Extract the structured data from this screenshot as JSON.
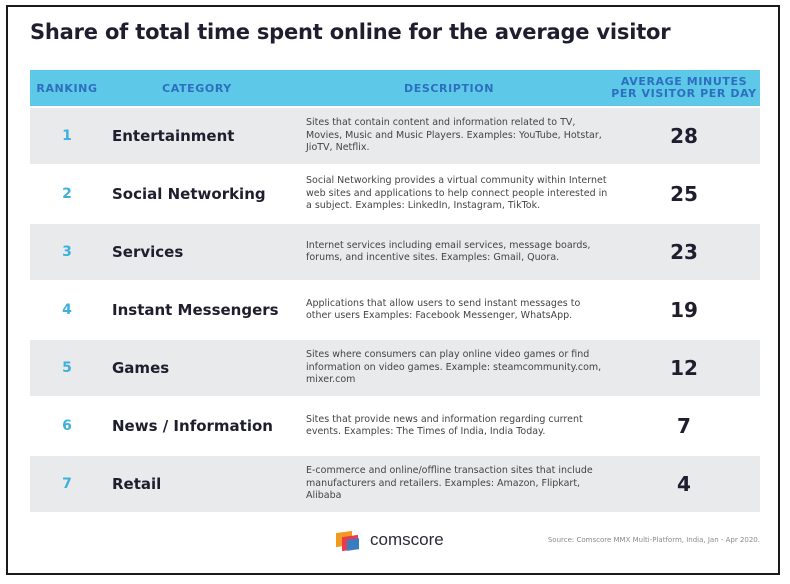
{
  "title": "Share of total time spent online for the average visitor",
  "headers": {
    "ranking": "RANKING",
    "category": "CATEGORY",
    "description": "DESCRIPTION",
    "minutes_line1": "AVERAGE MINUTES",
    "minutes_line2": "PER VISITOR PER DAY"
  },
  "chart_data": {
    "type": "table",
    "columns": [
      "RANKING",
      "CATEGORY",
      "DESCRIPTION",
      "AVERAGE MINUTES PER VISITOR PER DAY"
    ],
    "rows": [
      {
        "rank": "1",
        "category": "Entertainment",
        "description": "Sites that contain content and information related to TV, Movies, Music and Music Players. Examples: YouTube, Hotstar, JioTV, Netflix.",
        "minutes": 28
      },
      {
        "rank": "2",
        "category": "Social Networking",
        "description": "Social Networking provides a virtual community within Internet web sites and applications to help connect people interested in a subject. Examples: LinkedIn, Instagram, TikTok.",
        "minutes": 25
      },
      {
        "rank": "3",
        "category": "Services",
        "description": "Internet services including email services, message boards, forums, and incentive sites. Examples: Gmail, Quora.",
        "minutes": 23
      },
      {
        "rank": "4",
        "category": "Instant Messengers",
        "description": "Applications that allow users to send instant messages to other users Examples: Facebook Messenger, WhatsApp.",
        "minutes": 19
      },
      {
        "rank": "5",
        "category": "Games",
        "description": "Sites where consumers can play online video games or find information on video games. Example: steamcommunity.com, mixer.com",
        "minutes": 12
      },
      {
        "rank": "6",
        "category": "News / Information",
        "description": "Sites that provide news and information regarding current events. Examples: The Times of India, India Today.",
        "minutes": 7
      },
      {
        "rank": "7",
        "category": "Retail",
        "description": "E-commerce and online/offline transaction sites that include manufacturers and retailers. Examples: Amazon, Flipkart, Alibaba",
        "minutes": 4
      }
    ]
  },
  "logo": {
    "text": "comscore",
    "colors": [
      "#f29a1f",
      "#e83b4c",
      "#3a7cc2"
    ]
  },
  "source": "Source: Comscore MMX Multi-Platform, India, Jan - Apr 2020.",
  "colors": {
    "header_bg": "#5ec8e8",
    "header_text": "#2d6fbf",
    "rank_text": "#3fb0dd",
    "row_shade": "#e9eaeb"
  }
}
